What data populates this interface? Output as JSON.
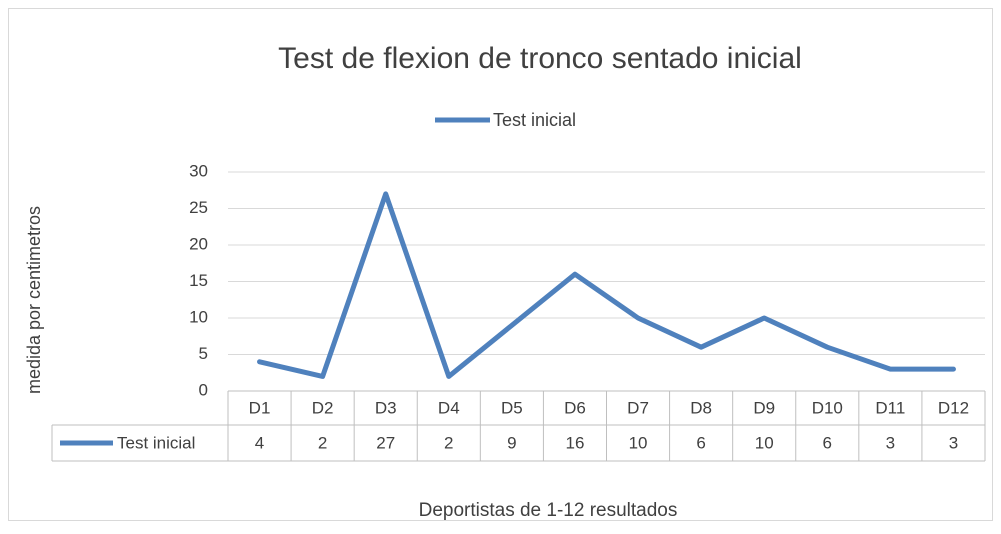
{
  "chart_data": {
    "type": "line",
    "title": "Test de flexion de tronco sentado inicial",
    "y_label": "medida por centimetros",
    "x_label": "Deportistas  de 1-12 resultados",
    "categories": [
      "D1",
      "D2",
      "D3",
      "D4",
      "D5",
      "D6",
      "D7",
      "D8",
      "D9",
      "D10",
      "D11",
      "D12"
    ],
    "series": [
      {
        "name": "Test inicial",
        "color": "#4f81bd",
        "values": [
          4,
          2,
          27,
          2,
          9,
          16,
          10,
          6,
          10,
          6,
          3,
          3
        ]
      }
    ],
    "ylim": [
      0,
      30
    ],
    "yticks": [
      0,
      5,
      10,
      15,
      20,
      25,
      30
    ],
    "grid": true,
    "legend": "top",
    "data_table": true
  }
}
